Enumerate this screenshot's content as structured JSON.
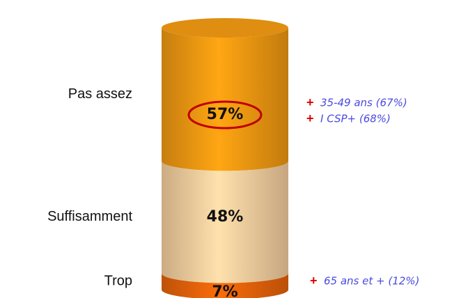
{
  "chart_data": {
    "type": "stacked-cylinder",
    "categories": [
      "Pas assez",
      "Suffisamment",
      "Trop"
    ],
    "values": [
      57,
      48,
      7
    ],
    "value_labels": [
      "57%",
      "48%",
      "7%"
    ],
    "colors": [
      "#f29a12",
      "#f8d0a0",
      "#e8640a"
    ],
    "annotations": [
      {
        "marker": "+",
        "text": "35-49 ans (67%)"
      },
      {
        "marker": "+",
        "text": "I CSP+ (68%)"
      },
      {
        "marker": "+",
        "text": "65 ans et + (12%)"
      }
    ]
  }
}
